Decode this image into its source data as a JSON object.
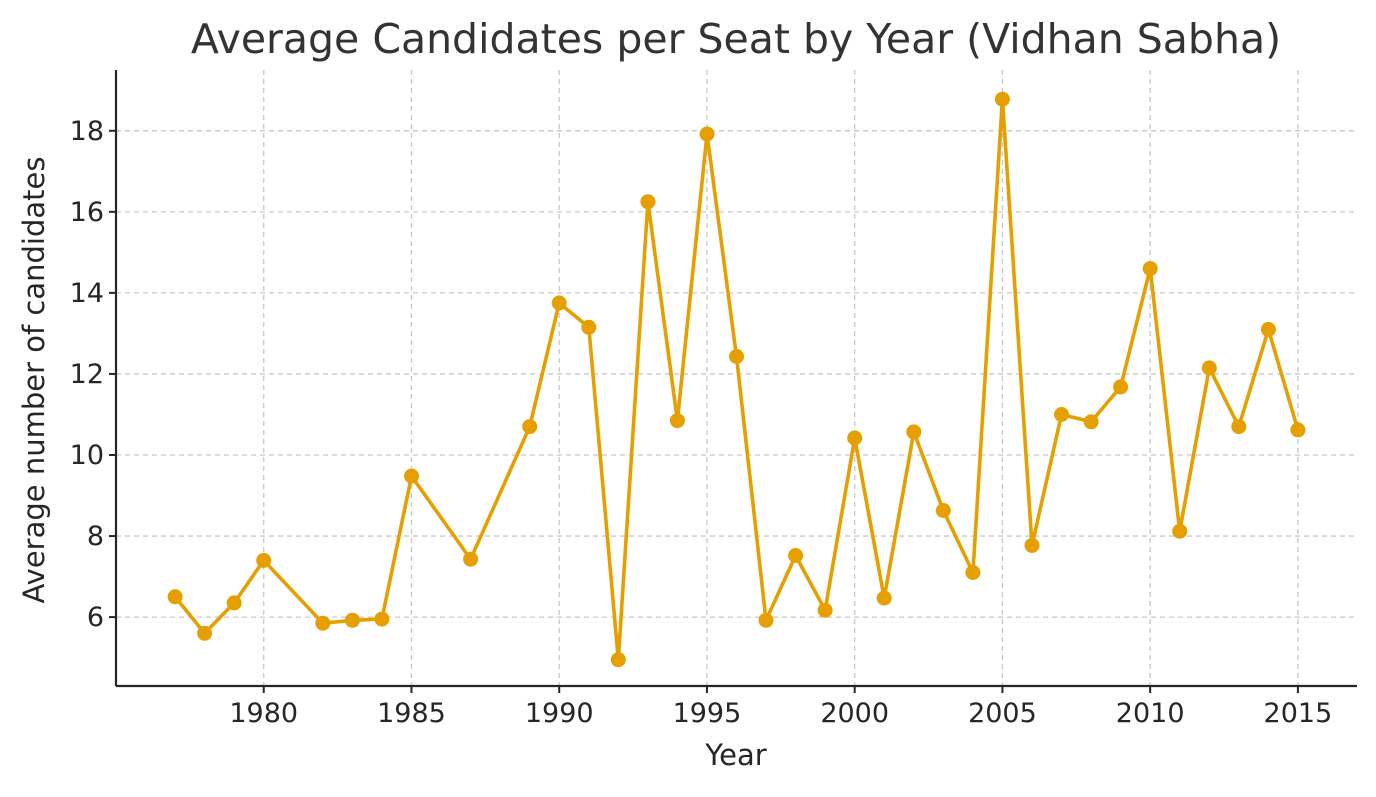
{
  "chart_data": {
    "type": "line",
    "title": "Average Candidates per Seat by Year (Vidhan Sabha)",
    "xlabel": "Year",
    "ylabel": "Average number of candidates",
    "xlim": [
      1975,
      2017
    ],
    "ylim": [
      4.3,
      19.5
    ],
    "xticks": [
      1980,
      1985,
      1990,
      1995,
      2000,
      2005,
      2010,
      2015
    ],
    "yticks": [
      6,
      8,
      10,
      12,
      14,
      16,
      18
    ],
    "grid": true,
    "color": "#E69F00",
    "series": [
      {
        "x": [
          1977,
          1978,
          1979,
          1980,
          1982,
          1983,
          1984,
          1985,
          1987,
          1989,
          1990,
          1991,
          1992,
          1993,
          1994,
          1995,
          1996,
          1997,
          1998,
          1999,
          2000,
          2001,
          2002,
          2003,
          2004,
          2005,
          2006,
          2007,
          2008,
          2009,
          2010,
          2011,
          2012,
          2013,
          2014,
          2015
        ],
        "y": [
          6.5,
          5.6,
          6.35,
          7.4,
          5.85,
          5.92,
          5.95,
          9.48,
          7.43,
          10.7,
          13.75,
          13.15,
          4.95,
          16.25,
          10.85,
          17.92,
          12.43,
          5.92,
          7.52,
          6.17,
          10.42,
          6.47,
          10.57,
          8.63,
          7.1,
          18.78,
          7.77,
          11.0,
          10.82,
          11.68,
          14.6,
          8.12,
          12.15,
          10.7,
          13.1,
          10.62
        ]
      }
    ]
  }
}
